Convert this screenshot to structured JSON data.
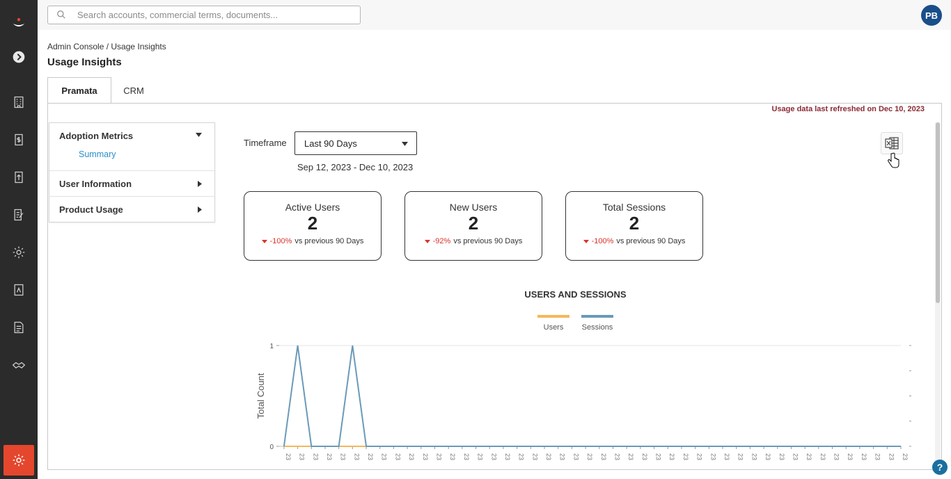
{
  "app": {
    "logo": "brand-logo",
    "accent": "#e4472d",
    "sidebar_bg": "#2b2b2b"
  },
  "sidebar": {
    "items": [
      {
        "name": "expand",
        "icon": "chevron-right-icon"
      },
      {
        "name": "organizations",
        "icon": "building-icon"
      },
      {
        "name": "commercial-terms",
        "icon": "dollar-document-icon"
      },
      {
        "name": "upload",
        "icon": "upload-icon"
      },
      {
        "name": "documents-edit",
        "icon": "edit-document-icon"
      },
      {
        "name": "settings",
        "icon": "gear-icon"
      },
      {
        "name": "reports",
        "icon": "report-icon"
      },
      {
        "name": "contracts",
        "icon": "contract-icon"
      },
      {
        "name": "handshake",
        "icon": "handshake-icon"
      }
    ],
    "bottom_item": {
      "icon": "admin-gear-icon"
    }
  },
  "search": {
    "placeholder": "Search accounts, commercial terms, documents..."
  },
  "user": {
    "initials": "PB"
  },
  "breadcrumb": "Admin Console / Usage Insights",
  "page_title": "Usage Insights",
  "tabs": [
    {
      "label": "Pramata",
      "active": true
    },
    {
      "label": "CRM",
      "active": false
    }
  ],
  "refresh_note": "Usage data last refreshed on Dec 10, 2023",
  "left_nav": {
    "sections": [
      {
        "label": "Adoption Metrics",
        "expanded": true,
        "children": [
          "Summary"
        ]
      },
      {
        "label": "User Information",
        "expanded": false
      },
      {
        "label": "Product Usage",
        "expanded": false
      }
    ]
  },
  "timeframe": {
    "label": "Timeframe",
    "selected": "Last 90 Days",
    "range": "Sep 12, 2023 - Dec 10, 2023"
  },
  "kpis": [
    {
      "title": "Active Users",
      "value": "2",
      "delta": "-100%",
      "suffix": "vs previous 90 Days"
    },
    {
      "title": "New Users",
      "value": "2",
      "delta": "-92%",
      "suffix": "vs previous 90 Days"
    },
    {
      "title": "Total Sessions",
      "value": "2",
      "delta": "-100%",
      "suffix": "vs previous 90 Days"
    }
  ],
  "chart": {
    "title": "USERS AND SESSIONS",
    "legend": [
      {
        "name": "Users",
        "color": "#f5b75d"
      },
      {
        "name": "Sessions",
        "color": "#6a9ab8"
      }
    ],
    "ylabel": "Total Count",
    "yticks": [
      "0",
      "1"
    ],
    "tick_label": "23"
  },
  "chart_data": {
    "type": "line",
    "title": "USERS AND SESSIONS",
    "ylabel": "Total Count",
    "ylim": [
      0,
      1
    ],
    "n_points": 46,
    "series": [
      {
        "name": "Users",
        "values": [
          0,
          0,
          0,
          0,
          0,
          0,
          0,
          0,
          0,
          0,
          0,
          0,
          0,
          0,
          0,
          0,
          0,
          0,
          0,
          0,
          0,
          0,
          0,
          0,
          0,
          0,
          0,
          0,
          0,
          0,
          0,
          0,
          0,
          0,
          0,
          0,
          0,
          0,
          0,
          0,
          0,
          0,
          0,
          0,
          0,
          0
        ]
      },
      {
        "name": "Sessions",
        "values": [
          0,
          1,
          0,
          0,
          0,
          1,
          0,
          0,
          0,
          0,
          0,
          0,
          0,
          0,
          0,
          0,
          0,
          0,
          0,
          0,
          0,
          0,
          0,
          0,
          0,
          0,
          0,
          0,
          0,
          0,
          0,
          0,
          0,
          0,
          0,
          0,
          0,
          0,
          0,
          0,
          0,
          0,
          0,
          0,
          0,
          0
        ]
      }
    ]
  },
  "help": {
    "label": "?"
  }
}
